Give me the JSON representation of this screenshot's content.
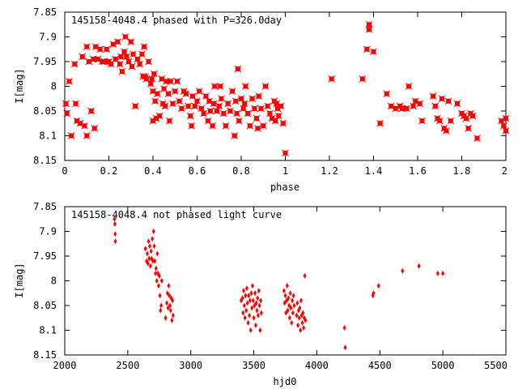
{
  "chart_data": [
    {
      "type": "scatter",
      "title": "145158-4048.4 phased with P=326.0day",
      "xlabel": "phase",
      "ylabel": "I[mag]",
      "xlim": [
        0,
        2
      ],
      "ylim": [
        7.85,
        8.15
      ],
      "y_inverted": true,
      "x_ticks": [
        "0",
        "0.2",
        "0.4",
        "0.6",
        "0.8",
        "1",
        "1.2",
        "1.4",
        "1.6",
        "1.8",
        "2"
      ],
      "y_ticks": [
        "7.85",
        "7.9",
        "7.95",
        "8",
        "8.05",
        "8.1",
        "8.15"
      ],
      "marker": "filled-square-cross",
      "series_color": "#ff0000",
      "points": [
        [
          0.005,
          8.035
        ],
        [
          0.01,
          8.055
        ],
        [
          0.02,
          7.99
        ],
        [
          0.03,
          8.1
        ],
        [
          0.045,
          7.955
        ],
        [
          0.05,
          8.035
        ],
        [
          0.055,
          8.07
        ],
        [
          0.07,
          8.075
        ],
        [
          0.08,
          7.94
        ],
        [
          0.09,
          8.08
        ],
        [
          0.1,
          7.92
        ],
        [
          0.1,
          8.1
        ],
        [
          0.11,
          7.95
        ],
        [
          0.12,
          8.05
        ],
        [
          0.13,
          7.945
        ],
        [
          0.135,
          8.085
        ],
        [
          0.14,
          7.92
        ],
        [
          0.15,
          7.945
        ],
        [
          0.16,
          7.925
        ],
        [
          0.17,
          7.95
        ],
        [
          0.18,
          7.95
        ],
        [
          0.19,
          7.925
        ],
        [
          0.2,
          7.95
        ],
        [
          0.21,
          7.955
        ],
        [
          0.22,
          7.915
        ],
        [
          0.23,
          7.945
        ],
        [
          0.24,
          7.91
        ],
        [
          0.25,
          7.955
        ],
        [
          0.255,
          7.94
        ],
        [
          0.26,
          7.97
        ],
        [
          0.27,
          7.93
        ],
        [
          0.275,
          7.9
        ],
        [
          0.28,
          7.94
        ],
        [
          0.29,
          7.95
        ],
        [
          0.3,
          7.91
        ],
        [
          0.305,
          7.96
        ],
        [
          0.31,
          7.935
        ],
        [
          0.32,
          8.04
        ],
        [
          0.33,
          7.945
        ],
        [
          0.34,
          7.955
        ],
        [
          0.35,
          7.935
        ],
        [
          0.355,
          7.98
        ],
        [
          0.36,
          7.92
        ],
        [
          0.365,
          7.98
        ],
        [
          0.37,
          7.985
        ],
        [
          0.38,
          7.95
        ],
        [
          0.39,
          7.995
        ],
        [
          0.395,
          7.985
        ],
        [
          0.4,
          8.01
        ],
        [
          0.4,
          8.07
        ],
        [
          0.405,
          7.975
        ],
        [
          0.41,
          8.03
        ],
        [
          0.415,
          8.065
        ],
        [
          0.42,
          8.015
        ],
        [
          0.43,
          8.06
        ],
        [
          0.44,
          7.985
        ],
        [
          0.445,
          8.035
        ],
        [
          0.45,
          8.005
        ],
        [
          0.455,
          8.04
        ],
        [
          0.46,
          7.99
        ],
        [
          0.47,
          8.015
        ],
        [
          0.475,
          8.07
        ],
        [
          0.48,
          7.99
        ],
        [
          0.49,
          8.035
        ],
        [
          0.5,
          8.01
        ],
        [
          0.51,
          7.99
        ],
        [
          0.52,
          8.03
        ],
        [
          0.53,
          8.045
        ],
        [
          0.54,
          8.01
        ],
        [
          0.55,
          8.015
        ],
        [
          0.56,
          8.04
        ],
        [
          0.57,
          8.06
        ],
        [
          0.575,
          8.08
        ],
        [
          0.58,
          8.02
        ],
        [
          0.59,
          8.04
        ],
        [
          0.6,
          8.03
        ],
        [
          0.61,
          8.01
        ],
        [
          0.62,
          8.045
        ],
        [
          0.63,
          8.055
        ],
        [
          0.64,
          8.02
        ],
        [
          0.65,
          8.07
        ],
        [
          0.655,
          8.03
        ],
        [
          0.66,
          8.05
        ],
        [
          0.67,
          8.08
        ],
        [
          0.675,
          8.035
        ],
        [
          0.68,
          8.0
        ],
        [
          0.69,
          8.05
        ],
        [
          0.7,
          8.04
        ],
        [
          0.705,
          8.0
        ],
        [
          0.71,
          8.025
        ],
        [
          0.72,
          8.055
        ],
        [
          0.73,
          8.08
        ],
        [
          0.74,
          8.035
        ],
        [
          0.75,
          8.05
        ],
        [
          0.76,
          8.01
        ],
        [
          0.77,
          8.1
        ],
        [
          0.775,
          8.03
        ],
        [
          0.78,
          8.055
        ],
        [
          0.785,
          7.965
        ],
        [
          0.79,
          8.07
        ],
        [
          0.8,
          8.025
        ],
        [
          0.81,
          8.045
        ],
        [
          0.815,
          8.035
        ],
        [
          0.82,
          8.0
        ],
        [
          0.83,
          8.055
        ],
        [
          0.84,
          8.08
        ],
        [
          0.85,
          8.025
        ],
        [
          0.86,
          8.045
        ],
        [
          0.87,
          8.065
        ],
        [
          0.875,
          8.085
        ],
        [
          0.88,
          8.02
        ],
        [
          0.89,
          8.045
        ],
        [
          0.9,
          8.08
        ],
        [
          0.91,
          8.0
        ],
        [
          0.92,
          8.04
        ],
        [
          0.93,
          8.055
        ],
        [
          0.94,
          8.065
        ],
        [
          0.95,
          8.03
        ],
        [
          0.955,
          8.07
        ],
        [
          0.96,
          8.035
        ],
        [
          0.965,
          8.045
        ],
        [
          0.97,
          8.06
        ],
        [
          0.98,
          8.04
        ],
        [
          0.99,
          8.075
        ],
        [
          1.0,
          8.135
        ],
        [
          1.21,
          7.985
        ],
        [
          1.35,
          7.985
        ],
        [
          1.37,
          7.925
        ],
        [
          1.38,
          7.885
        ],
        [
          1.38,
          7.875
        ],
        [
          1.4,
          7.93
        ],
        [
          1.43,
          8.075
        ],
        [
          1.46,
          8.015
        ],
        [
          1.48,
          8.04
        ],
        [
          1.5,
          8.045
        ],
        [
          1.52,
          8.04
        ],
        [
          1.53,
          8.045
        ],
        [
          1.55,
          8.045
        ],
        [
          1.56,
          8.0
        ],
        [
          1.58,
          8.04
        ],
        [
          1.59,
          8.03
        ],
        [
          1.61,
          8.035
        ],
        [
          1.62,
          8.07
        ],
        [
          1.67,
          8.02
        ],
        [
          1.68,
          8.04
        ],
        [
          1.69,
          8.065
        ],
        [
          1.7,
          8.07
        ],
        [
          1.71,
          8.025
        ],
        [
          1.72,
          8.085
        ],
        [
          1.73,
          8.09
        ],
        [
          1.74,
          8.03
        ],
        [
          1.75,
          8.07
        ],
        [
          1.78,
          8.035
        ],
        [
          1.8,
          8.055
        ],
        [
          1.81,
          8.06
        ],
        [
          1.82,
          8.065
        ],
        [
          1.83,
          8.085
        ],
        [
          1.84,
          8.055
        ],
        [
          1.85,
          8.06
        ],
        [
          1.87,
          8.105
        ],
        [
          1.98,
          8.07
        ],
        [
          1.99,
          8.08
        ],
        [
          2.0,
          8.09
        ],
        [
          2.0,
          8.065
        ]
      ]
    },
    {
      "type": "scatter",
      "title": "145158-4048.4 not phased light curve",
      "xlabel": "hjd0",
      "ylabel": "I[mag]",
      "xlim": [
        2000,
        5500
      ],
      "ylim": [
        7.85,
        8.15
      ],
      "y_inverted": true,
      "x_ticks": [
        "2000",
        "2500",
        "3000",
        "3500",
        "4000",
        "4500",
        "5000",
        "5500"
      ],
      "y_ticks": [
        "7.85",
        "7.9",
        "7.95",
        "8",
        "8.05",
        "8.1",
        "8.15"
      ],
      "marker": "diamond",
      "series_color": "#ff0000",
      "points": [
        [
          2395,
          7.875
        ],
        [
          2398,
          7.885
        ],
        [
          2400,
          7.905
        ],
        [
          2402,
          7.92
        ],
        [
          2640,
          7.935
        ],
        [
          2650,
          7.96
        ],
        [
          2655,
          7.945
        ],
        [
          2660,
          7.965
        ],
        [
          2665,
          7.92
        ],
        [
          2670,
          7.955
        ],
        [
          2675,
          7.93
        ],
        [
          2680,
          7.97
        ],
        [
          2685,
          7.94
        ],
        [
          2690,
          7.955
        ],
        [
          2695,
          7.915
        ],
        [
          2700,
          7.96
        ],
        [
          2705,
          7.9
        ],
        [
          2710,
          7.93
        ],
        [
          2715,
          7.96
        ],
        [
          2720,
          7.985
        ],
        [
          2725,
          7.975
        ],
        [
          2730,
          8.0
        ],
        [
          2735,
          7.945
        ],
        [
          2740,
          7.985
        ],
        [
          2745,
          8.01
        ],
        [
          2750,
          7.99
        ],
        [
          2755,
          8.03
        ],
        [
          2760,
          8.06
        ],
        [
          2765,
          8.05
        ],
        [
          2770,
          8.0
        ],
        [
          2800,
          8.075
        ],
        [
          2810,
          8.045
        ],
        [
          2815,
          8.025
        ],
        [
          2820,
          8.055
        ],
        [
          2825,
          8.01
        ],
        [
          2830,
          8.03
        ],
        [
          2835,
          8.05
        ],
        [
          2840,
          8.06
        ],
        [
          2845,
          8.035
        ],
        [
          2850,
          8.08
        ],
        [
          2855,
          8.04
        ],
        [
          2860,
          8.07
        ],
        [
          3400,
          8.04
        ],
        [
          3410,
          8.035
        ],
        [
          3415,
          8.065
        ],
        [
          3420,
          8.02
        ],
        [
          3425,
          8.05
        ],
        [
          3430,
          8.075
        ],
        [
          3435,
          8.03
        ],
        [
          3440,
          8.06
        ],
        [
          3445,
          8.015
        ],
        [
          3450,
          8.045
        ],
        [
          3455,
          8.085
        ],
        [
          3460,
          8.03
        ],
        [
          3465,
          8.07
        ],
        [
          3470,
          8.04
        ],
        [
          3475,
          8.1
        ],
        [
          3480,
          8.025
        ],
        [
          3485,
          8.055
        ],
        [
          3490,
          8.01
        ],
        [
          3495,
          8.04
        ],
        [
          3500,
          8.075
        ],
        [
          3505,
          8.05
        ],
        [
          3510,
          8.025
        ],
        [
          3515,
          8.09
        ],
        [
          3520,
          8.045
        ],
        [
          3525,
          8.06
        ],
        [
          3530,
          8.035
        ],
        [
          3535,
          8.07
        ],
        [
          3540,
          8.02
        ],
        [
          3545,
          8.05
        ],
        [
          3550,
          8.1
        ],
        [
          3555,
          8.04
        ],
        [
          3560,
          8.065
        ],
        [
          3740,
          8.02
        ],
        [
          3745,
          8.045
        ],
        [
          3750,
          8.03
        ],
        [
          3755,
          8.065
        ],
        [
          3760,
          8.04
        ],
        [
          3765,
          8.01
        ],
        [
          3770,
          8.06
        ],
        [
          3775,
          8.035
        ],
        [
          3780,
          8.05
        ],
        [
          3785,
          8.075
        ],
        [
          3790,
          8.025
        ],
        [
          3795,
          8.055
        ],
        [
          3800,
          8.085
        ],
        [
          3805,
          8.04
        ],
        [
          3810,
          8.065
        ],
        [
          3815,
          8.03
        ],
        [
          3820,
          8.05
        ],
        [
          3840,
          8.07
        ],
        [
          3845,
          8.045
        ],
        [
          3850,
          8.09
        ],
        [
          3855,
          8.06
        ],
        [
          3860,
          8.075
        ],
        [
          3865,
          8.055
        ],
        [
          3870,
          8.1
        ],
        [
          3875,
          8.04
        ],
        [
          3880,
          8.07
        ],
        [
          3885,
          8.085
        ],
        [
          3890,
          8.065
        ],
        [
          3895,
          8.095
        ],
        [
          3900,
          8.075
        ],
        [
          3905,
          7.99
        ],
        [
          3910,
          8.08
        ],
        [
          4220,
          8.095
        ],
        [
          4225,
          8.135
        ],
        [
          4445,
          8.03
        ],
        [
          4450,
          8.025
        ],
        [
          4490,
          8.01
        ],
        [
          4680,
          7.98
        ],
        [
          4810,
          7.97
        ],
        [
          4960,
          7.985
        ],
        [
          5000,
          7.985
        ]
      ]
    }
  ]
}
